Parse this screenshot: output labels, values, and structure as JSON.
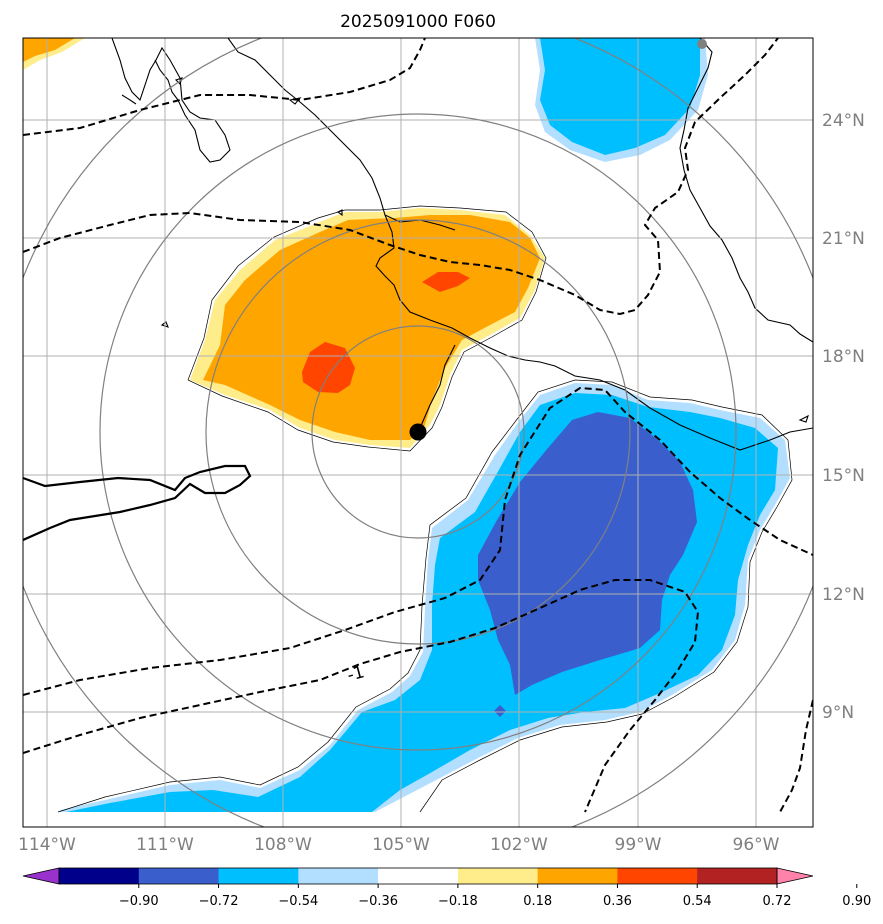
{
  "title": "2025091000 F060",
  "lon_labels": [
    "114°W",
    "111°W",
    "108°W",
    "105°W",
    "102°W",
    "99°W",
    "96°W"
  ],
  "lat_labels": [
    "24°N",
    "21°N",
    "18°N",
    "15°N",
    "12°N",
    "9°N"
  ],
  "contour_label": "-1",
  "colorbar": {
    "colors": [
      "#9932cc",
      "#00008b",
      "#3a5fcd",
      "#00bfff",
      "#b2dfff",
      "#ffffff",
      "#ffec8b",
      "#ffa500",
      "#ff4500",
      "#b22222",
      "#ff82ab"
    ],
    "tick_labels": [
      "−0.90",
      "−0.72",
      "−0.54",
      "−0.36",
      "−0.18",
      "0.18",
      "0.36",
      "0.54",
      "0.72",
      "0.90"
    ]
  },
  "colors": {
    "positive_light": "#ffec8b",
    "positive_mid": "#ffa500",
    "positive_high": "#ff4500",
    "negative_light": "#b2dfff",
    "negative_mid": "#00bfff",
    "negative_strong": "#3a5fcd",
    "grid": "#b0b0b0",
    "rings": "#808080",
    "label_gray": "#7f7f7f"
  },
  "center_marker": "storm-center"
}
